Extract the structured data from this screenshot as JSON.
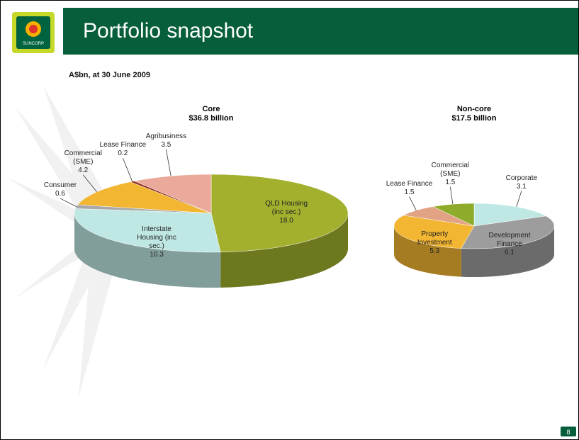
{
  "header": {
    "logo": "SUNCORP",
    "title": "Portfolio snapshot",
    "subtitle": "A$bn, at 30 June 2009"
  },
  "page_number": 8,
  "chart_data": [
    {
      "type": "pie",
      "title": "Core",
      "subtitle": "$36.8 billion",
      "categories": [
        "QLD Housing (inc sec.)",
        "Interstate Housing (inc sec.)",
        "Consumer",
        "Commercial (SME)",
        "Lease Finance",
        "Agribusiness"
      ],
      "values": [
        18.0,
        10.3,
        0.6,
        4.2,
        0.2,
        3.5
      ],
      "value_labels": [
        "18.0",
        "10.3",
        "0.6",
        "4.2",
        "0.2",
        "3.5"
      ],
      "colors": [
        "#a2b02e",
        "#bfe8e4",
        "#a9a9a9",
        "#f2b632",
        "#8c2b1c",
        "#eaa99a"
      ]
    },
    {
      "type": "pie",
      "title": "Non-core",
      "subtitle": "$17.5 billion",
      "categories": [
        "Corporate",
        "Development Finance",
        "Property Investment",
        "Lease Finance",
        "Commercial (SME)"
      ],
      "values": [
        3.1,
        6.1,
        5.3,
        1.5,
        1.5
      ],
      "colors": [
        "#bfe8e4",
        "#9d9d9d",
        "#f2b632",
        "#e2a384",
        "#8fab2c"
      ]
    }
  ]
}
